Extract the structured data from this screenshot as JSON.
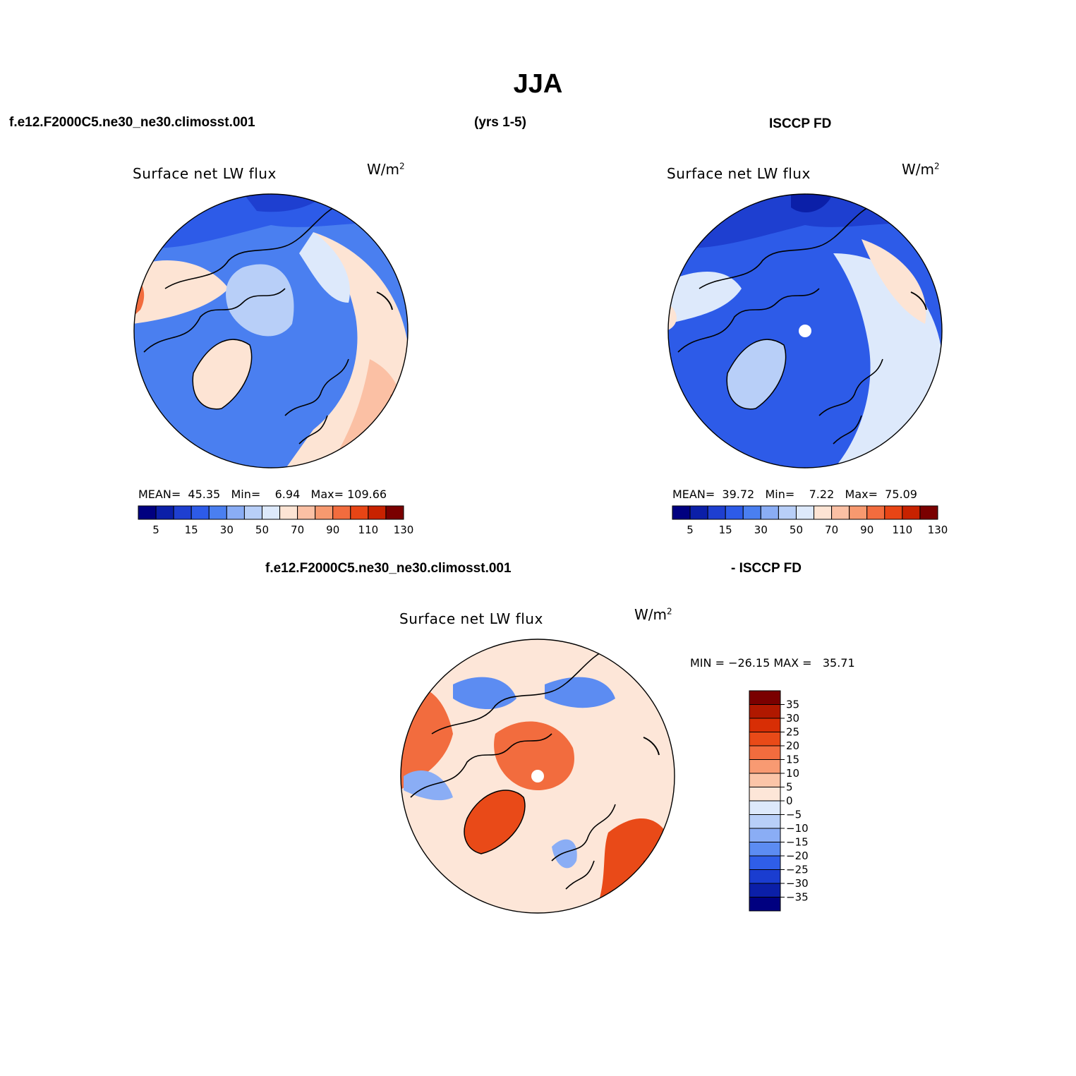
{
  "title": "JJA",
  "header_left": "f.e12.F2000C5.ne30_ne30.climosst.001",
  "header_mid": "(yrs 1-5)",
  "header_right": "ISCCP FD",
  "diff_header_left": "f.e12.F2000C5.ne30_ne30.climosst.001",
  "diff_header_right": "- ISCCP FD",
  "panels": [
    {
      "title": "Surface net LW flux",
      "units": "W/m",
      "units_sup": "2",
      "mean_label": "MEAN=",
      "mean": "45.35",
      "min_label": "Min=",
      "min": "6.94",
      "max_label": "Max=",
      "max": "109.66"
    },
    {
      "title": "Surface net LW flux",
      "units": "W/m",
      "units_sup": "2",
      "mean_label": "MEAN=",
      "mean": "39.72",
      "min_label": "Min=",
      "min": "7.22",
      "max_label": "Max=",
      "max": "75.09"
    },
    {
      "title": "Surface net LW flux",
      "units": "W/m",
      "units_sup": "2",
      "minmax": "MIN = −26.15 MAX =   35.71"
    }
  ],
  "colorbar_main": {
    "colors": [
      "#000080",
      "#0b1fa8",
      "#1e3fd0",
      "#2d5be8",
      "#4a7ff0",
      "#8aadf5",
      "#b8cff8",
      "#dde9fb",
      "#fde4d4",
      "#fbc0a4",
      "#f7996f",
      "#f26c3e",
      "#e84515",
      "#c82200",
      "#7a0000"
    ],
    "labels": [
      "5",
      "15",
      "30",
      "50",
      "70",
      "90",
      "110",
      "130"
    ]
  },
  "colorbar_diff": {
    "colors": [
      "#7a0000",
      "#b01800",
      "#d82e05",
      "#e94a18",
      "#f26c3e",
      "#f89a72",
      "#fbc5a8",
      "#fde6d8",
      "#dde9fb",
      "#b8cff8",
      "#8aadf5",
      "#5c8cf2",
      "#2f5ee8",
      "#1a3dd0",
      "#0b1fa8",
      "#000080"
    ],
    "labels": [
      "35",
      "30",
      "25",
      "20",
      "15",
      "10",
      "5",
      "0",
      "−5",
      "−10",
      "−15",
      "−20",
      "−25",
      "−30",
      "−35"
    ]
  }
}
